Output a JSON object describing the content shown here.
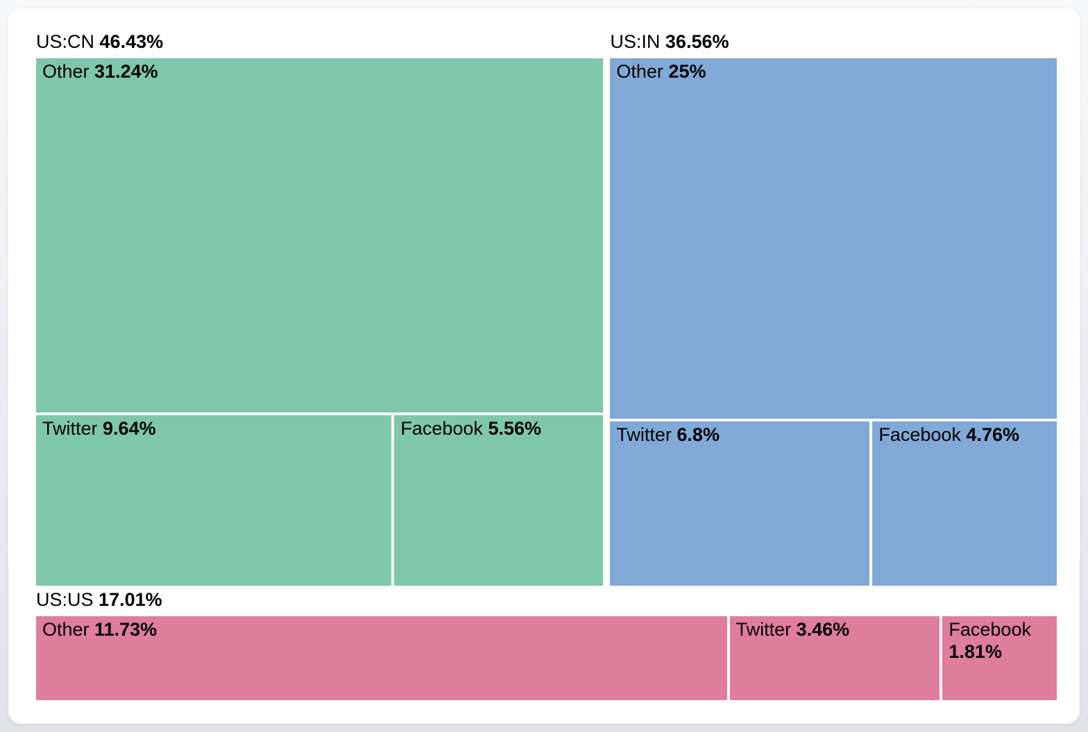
{
  "page": {
    "background_top": "#f7f8fa",
    "background_bottom": "#e2e3e7",
    "card_background": "#ffffff",
    "text_color": "#000000"
  },
  "chart_data": {
    "type": "treemap",
    "title": "",
    "unit": "%",
    "layout": "grouped treemap, group label above each group block, child cells labeled inside",
    "groups": [
      {
        "name": "US:CN",
        "value": 46.43,
        "display": "46.43%",
        "color": "#7fc7ab",
        "children": [
          {
            "name": "Other",
            "value": 31.24,
            "display": "31.24%"
          },
          {
            "name": "Twitter",
            "value": 9.64,
            "display": "9.64%"
          },
          {
            "name": "Facebook",
            "value": 5.56,
            "display": "5.56%"
          }
        ]
      },
      {
        "name": "US:IN",
        "value": 36.56,
        "display": "36.56%",
        "color": "#81a9d8",
        "children": [
          {
            "name": "Other",
            "value": 25,
            "display": "25%"
          },
          {
            "name": "Twitter",
            "value": 6.8,
            "display": "6.8%"
          },
          {
            "name": "Facebook",
            "value": 4.76,
            "display": "4.76%"
          }
        ]
      },
      {
        "name": "US:US",
        "value": 17.01,
        "display": "17.01%",
        "color": "#df7d9d",
        "children": [
          {
            "name": "Other",
            "value": 11.73,
            "display": "11.73%"
          },
          {
            "name": "Twitter",
            "value": 3.46,
            "display": "3.46%"
          },
          {
            "name": "Facebook",
            "value": 1.81,
            "display": "1.81%"
          }
        ]
      }
    ]
  }
}
